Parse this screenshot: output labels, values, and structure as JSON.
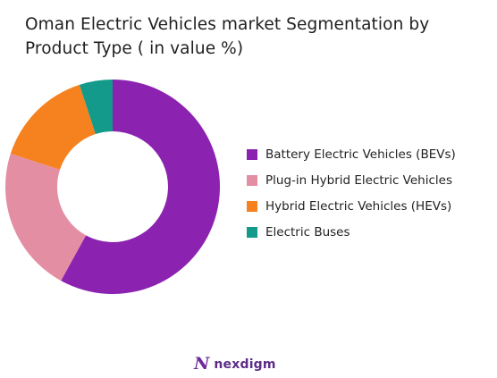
{
  "chart_data": {
    "type": "pie",
    "title": "Oman Electric Vehicles market Segmentation by Product Type ( in value %)",
    "donut": true,
    "categories": [
      "Battery Electric Vehicles (BEVs)",
      "Plug-in Hybrid Electric Vehicles",
      "Hybrid Electric Vehicles (HEVs)",
      "Electric Buses"
    ],
    "values": [
      58,
      22,
      15,
      5
    ],
    "colors": [
      "#8b22b0",
      "#e48ea4",
      "#f5821f",
      "#139a8a"
    ],
    "legend_position": "right"
  },
  "brand": {
    "mark": "N",
    "name": "nexdigm"
  }
}
